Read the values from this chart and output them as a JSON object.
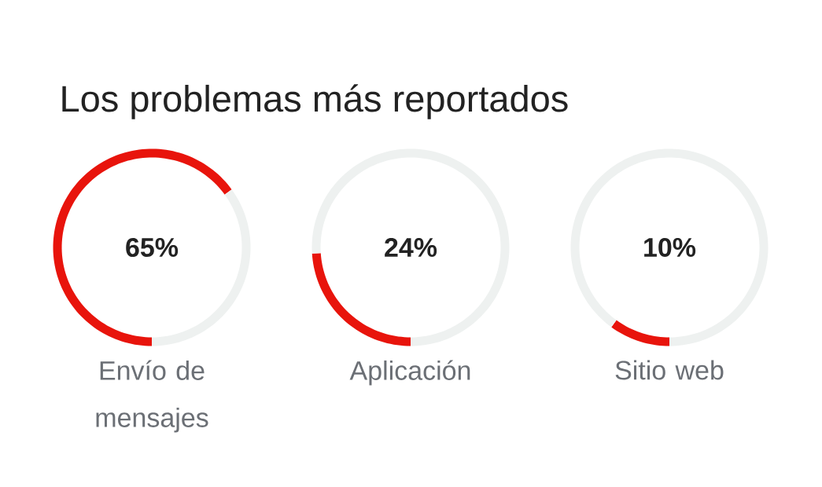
{
  "chart_data": [
    {
      "type": "donut",
      "title": "Los problemas más reportados",
      "categories": [
        "Envío de mensajes",
        null
      ],
      "values": [
        65,
        35
      ],
      "colors": [
        "#e8140c",
        "#eef1f0"
      ],
      "annotations": [
        "65%"
      ]
    },
    {
      "type": "donut",
      "categories": [
        "Aplicación",
        null
      ],
      "values": [
        24,
        76
      ],
      "colors": [
        "#e8140c",
        "#eef1f0"
      ],
      "annotations": [
        "24%"
      ]
    },
    {
      "type": "donut",
      "categories": [
        "Sitio web",
        null
      ],
      "values": [
        10,
        90
      ],
      "colors": [
        "#e8140c",
        "#eef1f0"
      ],
      "annotations": [
        "10%"
      ]
    }
  ]
}
